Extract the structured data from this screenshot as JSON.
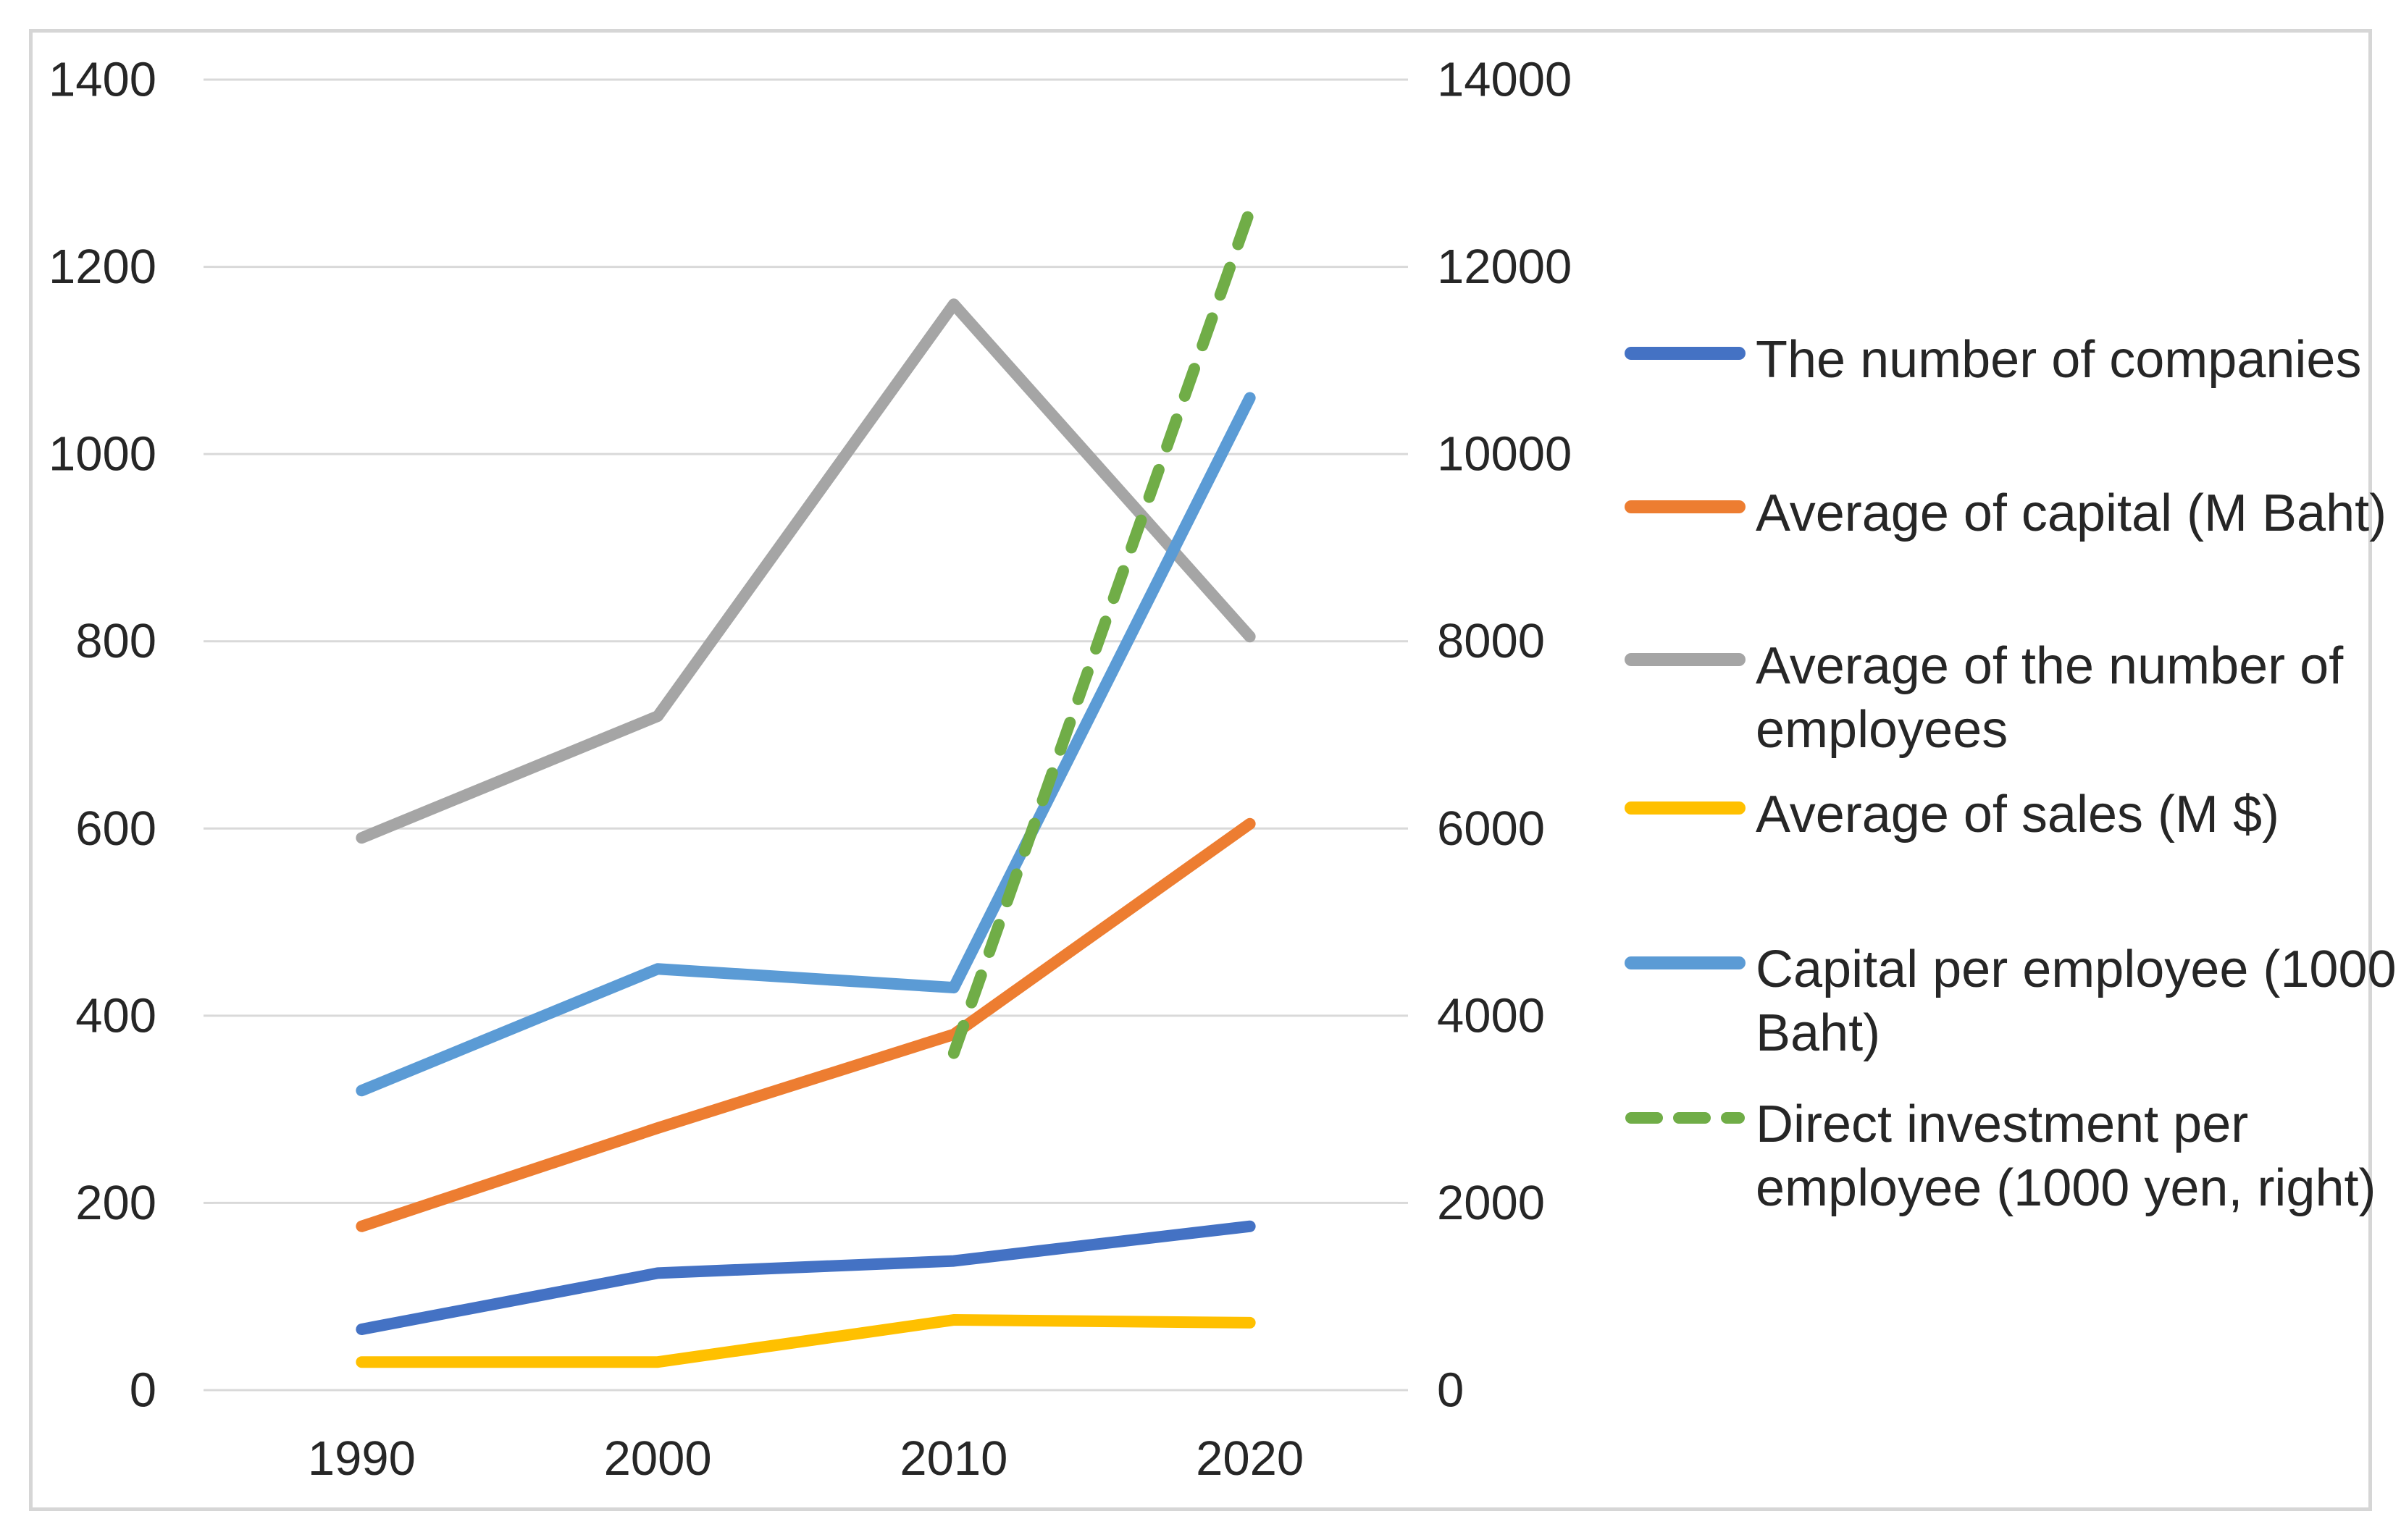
{
  "chart_data": {
    "type": "line",
    "title": "",
    "categories": [
      "1990",
      "2000",
      "2010",
      "2020"
    ],
    "series": [
      {
        "name": "The number of companies",
        "legend_lines": [
          "The number of companies"
        ],
        "axis": "left",
        "color": "#4472C4",
        "dashed": false,
        "values": [
          65,
          125,
          138,
          175
        ]
      },
      {
        "name": "Average of capital (M Baht)",
        "legend_lines": [
          "Average of capital (M Baht)"
        ],
        "axis": "left",
        "color": "#ED7D31",
        "dashed": false,
        "values": [
          175,
          280,
          380,
          605
        ]
      },
      {
        "name": "Average of the number of employees",
        "legend_lines": [
          "Average of the number of",
          "employees"
        ],
        "axis": "left",
        "color": "#A5A5A5",
        "dashed": false,
        "values": [
          590,
          720,
          1160,
          805
        ]
      },
      {
        "name": "Average of sales (M $)",
        "legend_lines": [
          "Average of sales (M $)"
        ],
        "axis": "left",
        "color": "#FFC000",
        "dashed": false,
        "values": [
          30,
          30,
          75,
          72
        ]
      },
      {
        "name": "Capital per employee (1000 Baht)",
        "legend_lines": [
          "Capital per employee (1000",
          "Baht)"
        ],
        "axis": "left",
        "color": "#5B9BD5",
        "dashed": false,
        "values": [
          320,
          450,
          430,
          1060
        ]
      },
      {
        "name": "Direct investment per employee (1000 yen, right)",
        "legend_lines": [
          "Direct investment per",
          "employee (1000 yen, right)"
        ],
        "axis": "right",
        "color": "#70AD47",
        "dashed": true,
        "values": [
          null,
          null,
          3600,
          12600
        ]
      }
    ],
    "left_axis": {
      "min": 0,
      "max": 1400,
      "step": 200,
      "ticks": [
        "0",
        "200",
        "400",
        "600",
        "800",
        "1000",
        "1200",
        "1400"
      ]
    },
    "right_axis": {
      "min": 0,
      "max": 14000,
      "step": 2000,
      "ticks": [
        "0",
        "2000",
        "4000",
        "6000",
        "8000",
        "10000",
        "12000",
        "14000"
      ]
    },
    "grid": true,
    "legend_position": "right"
  },
  "colors": {
    "gridline": "#D9D9D9",
    "frame_border": "#D6D6D6",
    "text": "#262626",
    "background": "#FFFFFF"
  }
}
